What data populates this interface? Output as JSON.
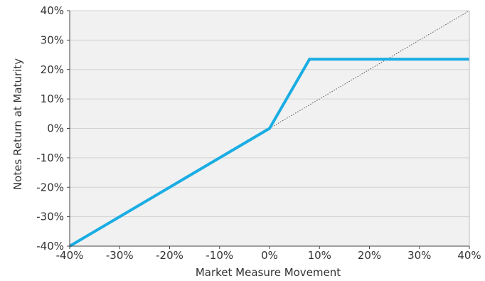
{
  "chart_data": {
    "type": "line",
    "title": "",
    "xlabel": "Market Measure Movement",
    "ylabel": "Notes Return at Maturity",
    "xlim": [
      -40,
      40
    ],
    "ylim": [
      -40,
      40
    ],
    "x_ticks": [
      -40,
      -30,
      -20,
      -10,
      0,
      10,
      20,
      30,
      40
    ],
    "y_ticks": [
      -40,
      -30,
      -20,
      -10,
      0,
      10,
      20,
      30,
      40
    ],
    "x_tick_labels": [
      "-40%",
      "-30%",
      "-20%",
      "-10%",
      "0%",
      "10%",
      "20%",
      "30%",
      "40%"
    ],
    "y_tick_labels": [
      "-40%",
      "-30%",
      "-20%",
      "-10%",
      "0%",
      "10%",
      "20%",
      "30%",
      "40%"
    ],
    "grid": true,
    "legend": "none",
    "series": [
      {
        "style": "solid-thick",
        "color": "#1AADE3",
        "x": [
          -40,
          0,
          8,
          40
        ],
        "y": [
          -40,
          0,
          23.5,
          23.5
        ]
      },
      {
        "style": "dotted-thin",
        "color": "#555555",
        "x": [
          0,
          40
        ],
        "y": [
          0,
          40
        ]
      }
    ],
    "background_color": "#f1f1f1",
    "grid_color": "#d2d2d2"
  }
}
